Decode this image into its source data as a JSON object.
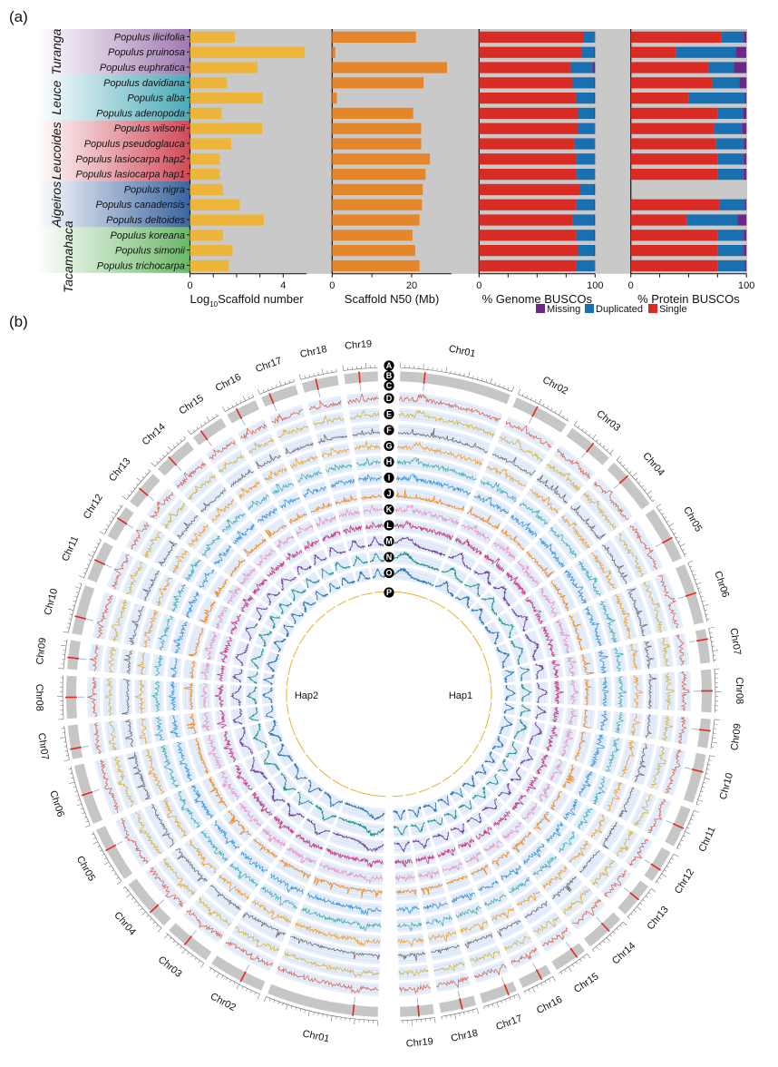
{
  "panel_labels": {
    "a": "(a)",
    "b": "(b)"
  },
  "colors": {
    "background": "#c8c9c8",
    "scaffold_number": "#eeb53b",
    "scaffold_n50": "#e6862b",
    "single": "#d92b23",
    "duplicated": "#1870b0",
    "missing": "#6a2a84",
    "highlight_label": "#e0312b"
  },
  "groups": [
    {
      "name": "Turanga",
      "color": "#a07ab0",
      "rows": [
        0,
        2
      ]
    },
    {
      "name": "Leuce",
      "color": "#4aaab8",
      "rows": [
        3,
        5
      ]
    },
    {
      "name": "Leucoides",
      "color": "#d04a58",
      "rows": [
        6,
        9
      ]
    },
    {
      "name": "Aigeiros",
      "color": "#3a64a0",
      "rows": [
        10,
        12
      ]
    },
    {
      "name": "Tacamahaca",
      "color": "#6ab868",
      "rows": [
        13,
        15
      ]
    }
  ],
  "chart_data": [
    {
      "type": "bar",
      "xlabel_main": "Log",
      "xlabel_sub": "10",
      "xlabel_rest": "Scaffold number",
      "xlim": [
        0,
        5
      ],
      "tick_values": [
        0,
        1,
        2,
        3,
        4
      ],
      "tick_labels": {
        "0": "0",
        "4": "4"
      },
      "categories": [
        "Populus ilicifolia",
        "Populus pruinosa",
        "Populus euphratica",
        "Populus davidiana",
        "Populus alba",
        "Populus adenopoda",
        "Populus wilsonii",
        "Populus pseudoglauca",
        "Populus lasiocarpa hap2",
        "Populus lasiocarpa hap1",
        "Populus nigra",
        "Populus canadensis",
        "Populus deltoides",
        "Populus koreana",
        "Populus simonii",
        "Populus trichocarpa"
      ],
      "highlighted": [
        "Populus lasiocarpa hap2",
        "Populus lasiocarpa hap1"
      ],
      "values": [
        1.93,
        4.93,
        2.9,
        1.59,
        3.12,
        1.36,
        3.1,
        1.77,
        1.28,
        1.28,
        1.41,
        2.14,
        3.17,
        1.41,
        1.83,
        1.67
      ]
    },
    {
      "type": "bar",
      "xlabel": "Scaffold N50 (Mb)",
      "xlim": [
        0,
        30
      ],
      "tick_values": [
        0,
        10,
        20
      ],
      "tick_labels": {
        "0": "0",
        "20": "20"
      },
      "values": [
        21.1,
        0.8,
        28.9,
        23.0,
        1.2,
        20.4,
        22.4,
        22.4,
        24.6,
        23.5,
        22.8,
        22.6,
        22.0,
        20.2,
        20.9,
        22.0
      ]
    },
    {
      "type": "bar",
      "stacked": true,
      "xlabel": "% Genome BUSCOs",
      "xlim": [
        0,
        100
      ],
      "tick_values": [
        0,
        25,
        50,
        75,
        100
      ],
      "tick_labels": {
        "0": "0",
        "100": "100"
      },
      "series": [
        {
          "name": "Single",
          "values": [
            89.6,
            88.0,
            78.6,
            80.2,
            83.3,
            84.9,
            84.9,
            82.3,
            83.9,
            83.9,
            86.5,
            83.9,
            80.7,
            83.9,
            84.9,
            83.9
          ]
        },
        {
          "name": "Duplicated",
          "values": [
            10.1,
            11.0,
            19.6,
            18.8,
            15.7,
            14.1,
            14.8,
            17.4,
            15.8,
            15.8,
            12.5,
            15.1,
            18.3,
            15.1,
            14.1,
            15.8
          ]
        },
        {
          "name": "Missing",
          "values": [
            0.3,
            1.0,
            1.8,
            1.0,
            1.0,
            1.0,
            0.3,
            0.3,
            0.3,
            0.3,
            1.0,
            1.0,
            1.0,
            1.0,
            1.0,
            0.3
          ]
        }
      ]
    },
    {
      "type": "bar",
      "stacked": true,
      "xlabel": "% Protein BUSCOs",
      "xlim": [
        0,
        100
      ],
      "tick_values": [
        0,
        25,
        50,
        75,
        100
      ],
      "tick_labels": {
        "0": "0",
        "100": "100"
      },
      "series": [
        {
          "name": "Single",
          "values": [
            78.5,
            39.3,
            67.0,
            70.2,
            50.3,
            74.9,
            72.3,
            73.8,
            74.9,
            74.9,
            null,
            76.4,
            48.7,
            74.9,
            75.4,
            74.9
          ]
        },
        {
          "name": "Duplicated",
          "values": [
            19.1,
            51.3,
            22.0,
            23.5,
            48.1,
            22.0,
            23.8,
            23.8,
            22.7,
            22.7,
            null,
            22.0,
            43.4,
            22.7,
            22.2,
            23.5
          ]
        },
        {
          "name": "Missing",
          "values": [
            2.4,
            9.2,
            11.0,
            6.3,
            1.6,
            3.1,
            3.9,
            2.4,
            2.4,
            2.4,
            null,
            1.6,
            7.9,
            2.4,
            2.4,
            1.6
          ]
        }
      ]
    }
  ],
  "legend": [
    {
      "label": "Missing",
      "color": "#6a2a84"
    },
    {
      "label": "Duplicated",
      "color": "#1870b0"
    },
    {
      "label": "Single",
      "color": "#d92b23"
    }
  ],
  "circos": {
    "haplotypes": [
      {
        "label": "Hap1",
        "side": "right"
      },
      {
        "label": "Hap2",
        "side": "left"
      }
    ],
    "chromosomes": [
      {
        "name": "Chr01",
        "length_mb": 50
      },
      {
        "name": "Chr02",
        "length_mb": 25
      },
      {
        "name": "Chr03",
        "length_mb": 21
      },
      {
        "name": "Chr04",
        "length_mb": 24
      },
      {
        "name": "Chr05",
        "length_mb": 25
      },
      {
        "name": "Chr06",
        "length_mb": 27
      },
      {
        "name": "Chr07",
        "length_mb": 15
      },
      {
        "name": "Chr08",
        "length_mb": 19
      },
      {
        "name": "Chr09",
        "length_mb": 12.9
      },
      {
        "name": "Chr10",
        "length_mb": 22
      },
      {
        "name": "Chr11",
        "length_mb": 18
      },
      {
        "name": "Chr12",
        "length_mb": 15
      },
      {
        "name": "Chr13",
        "length_mb": 16
      },
      {
        "name": "Chr14",
        "length_mb": 18
      },
      {
        "name": "Chr15",
        "length_mb": 15
      },
      {
        "name": "Chr16",
        "length_mb": 14
      },
      {
        "name": "Chr17",
        "length_mb": 16
      },
      {
        "name": "Chr18",
        "length_mb": 16
      },
      {
        "name": "Chr19",
        "length_mb": 15
      }
    ],
    "tracks": [
      {
        "letter": "A",
        "color": "#777777"
      },
      {
        "letter": "B",
        "color": "#c6c6c6"
      },
      {
        "letter": "C",
        "color": "#9ab8e0"
      },
      {
        "letter": "D",
        "color": "#d9684f"
      },
      {
        "letter": "E",
        "color": "#d6b445"
      },
      {
        "letter": "F",
        "color": "#6f6f6f"
      },
      {
        "letter": "G",
        "color": "#eea236"
      },
      {
        "letter": "H",
        "color": "#47b0b0"
      },
      {
        "letter": "I",
        "color": "#3b97d6"
      },
      {
        "letter": "J",
        "color": "#f0891f"
      },
      {
        "letter": "K",
        "color": "#e99ac4"
      },
      {
        "letter": "L",
        "color": "#c8407e"
      },
      {
        "letter": "M",
        "color": "#6b3794"
      },
      {
        "letter": "N",
        "color": "#1d8f80"
      },
      {
        "letter": "O",
        "color": "#2a6ea8"
      },
      {
        "letter": "P",
        "color": "#e8b030"
      }
    ],
    "band_color": "#e5eefa",
    "grid_color": "#c9d9f1",
    "centromere_color": "#e02a22"
  }
}
